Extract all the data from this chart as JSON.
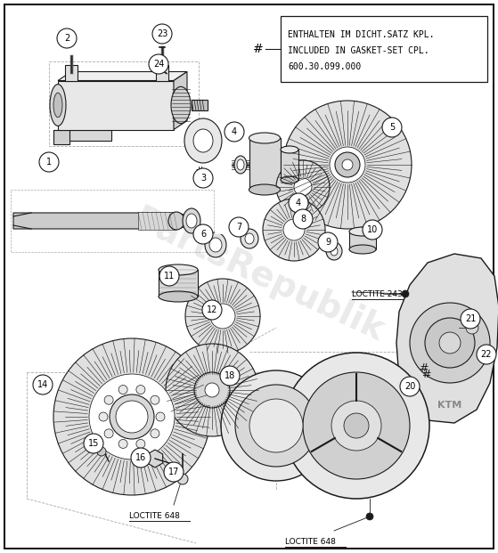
{
  "bg_color": "#ffffff",
  "line_color": "#1a1a1a",
  "watermark_text": "PartsRepublik",
  "box_text_line1": "ENTHALTEN IM DICHT.SATZ KPL.",
  "box_text_line2": "INCLUDED IN GASKET-SET CPL.",
  "box_text_line3": "600.30.099.000",
  "hash_symbol": "#",
  "loctite_648_1": "LOCTITE 648",
  "loctite_648_2": "LOCTITE 648",
  "loctite_243": "LOCTITE 243",
  "figsize": [
    5.59,
    6.21
  ],
  "dpi": 100
}
